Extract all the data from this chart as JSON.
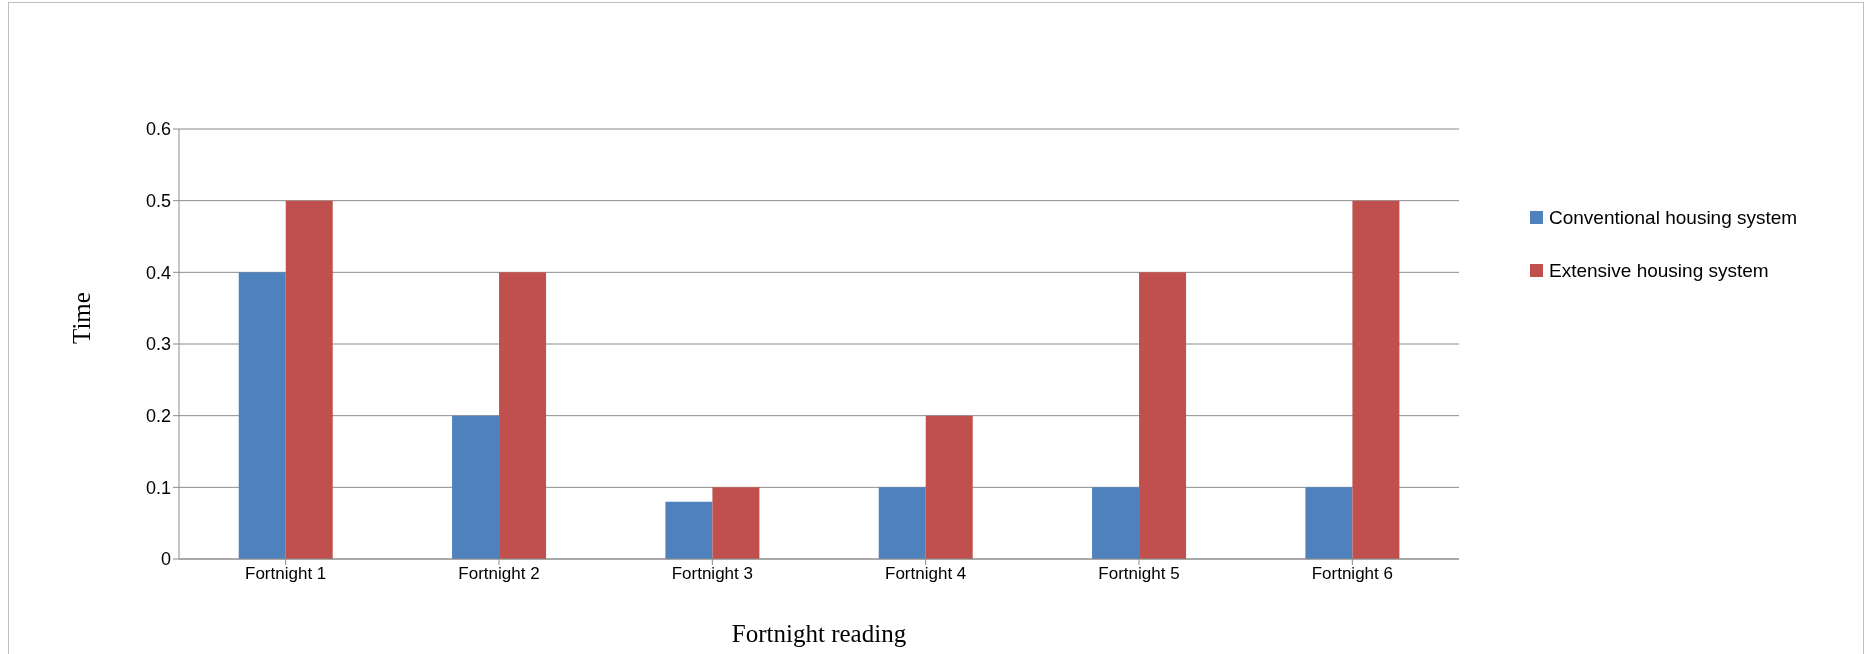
{
  "chart_data": {
    "type": "bar",
    "xlabel": "Fortnight reading",
    "ylabel": "Time",
    "categories": [
      "Fortnight 1",
      "Fortnight 2",
      "Fortnight 3",
      "Fortnight 4",
      "Fortnight 5",
      "Fortnight 6"
    ],
    "series": [
      {
        "name": "Conventional housing system",
        "color": "#4f81bd",
        "values": [
          0.4,
          0.2,
          0.08,
          0.1,
          0.1,
          0.1
        ]
      },
      {
        "name": "Extensive housing system",
        "color": "#c0504d",
        "values": [
          0.5,
          0.4,
          0.1,
          0.2,
          0.4,
          0.5
        ]
      }
    ],
    "ylim": [
      0,
      0.6
    ],
    "yticks": [
      0,
      0.1,
      0.2,
      0.3,
      0.4,
      0.5,
      0.6
    ],
    "grid": "y",
    "legend": "right"
  }
}
